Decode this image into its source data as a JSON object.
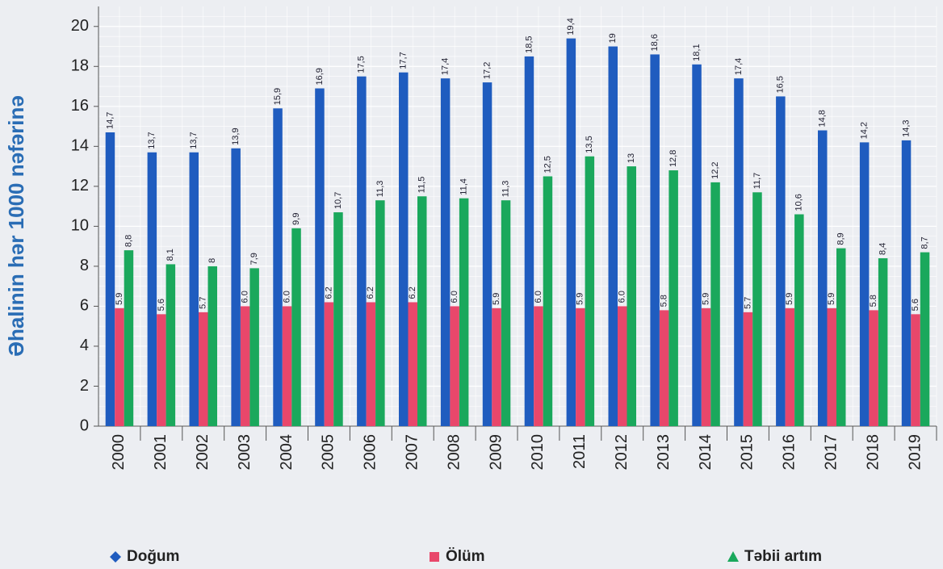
{
  "chart_data": {
    "type": "bar",
    "y_label": "Əhalinin hər 1000 nəfərinə",
    "categories": [
      "2000",
      "2001",
      "2002",
      "2003",
      "2004",
      "2005",
      "2006",
      "2007",
      "2008",
      "2009",
      "2010",
      "2011",
      "2012",
      "2013",
      "2014",
      "2015",
      "2016",
      "2017",
      "2018",
      "2019"
    ],
    "series": [
      {
        "name": "Doğum",
        "color": "#1f5cbf",
        "marker": "diamond",
        "values": [
          14.7,
          13.7,
          13.7,
          13.9,
          15.9,
          16.9,
          17.5,
          17.7,
          17.4,
          17.2,
          18.5,
          19.4,
          19,
          18.6,
          18.1,
          17.4,
          16.5,
          14.8,
          14.2,
          14.3
        ],
        "value_labels": [
          "14,7",
          "13,7",
          "13,7",
          "13,9",
          "15,9",
          "16,9",
          "17,5",
          "17,7",
          "17,4",
          "17,2",
          "18,5",
          "19,4",
          "19",
          "18,6",
          "18,1",
          "17,4",
          "16,5",
          "14,8",
          "14,2",
          "14,3"
        ]
      },
      {
        "name": "Ölüm",
        "color": "#e8476b",
        "marker": "square",
        "values": [
          5.9,
          5.6,
          5.7,
          6.0,
          6.0,
          6.2,
          6.2,
          6.2,
          6.0,
          5.9,
          6.0,
          5.9,
          6.0,
          5.8,
          5.9,
          5.7,
          5.9,
          5.9,
          5.8,
          5.6
        ],
        "value_labels": [
          "5.9",
          "5.6",
          "5.7",
          "6.0",
          "6.0",
          "6.2",
          "6.2",
          "6.2",
          "6.0",
          "5.9",
          "6.0",
          "5.9",
          "6.0",
          "5.8",
          "5.9",
          "5.7",
          "5.9",
          "5.9",
          "5.8",
          "5.6"
        ]
      },
      {
        "name": "Təbii artım",
        "color": "#1aa85c",
        "marker": "triangle",
        "values": [
          8.8,
          8.1,
          8,
          7.9,
          9.9,
          10.7,
          11.3,
          11.5,
          11.4,
          11.3,
          12.5,
          13.5,
          13,
          12.8,
          12.2,
          11.7,
          10.6,
          8.9,
          8.4,
          8.7
        ],
        "value_labels": [
          "8,8",
          "8,1",
          "8",
          "7,9",
          "9,9",
          "10,7",
          "11,3",
          "11,5",
          "11,4",
          "11,3",
          "12,5",
          "13,5",
          "13",
          "12,8",
          "12,2",
          "11,7",
          "10,6",
          "8,9",
          "8,4",
          "8,7"
        ]
      }
    ],
    "ylim": [
      0,
      21
    ],
    "yticks": [
      0,
      2,
      4,
      6,
      8,
      10,
      12,
      14,
      16,
      18,
      20
    ],
    "grid": true
  }
}
